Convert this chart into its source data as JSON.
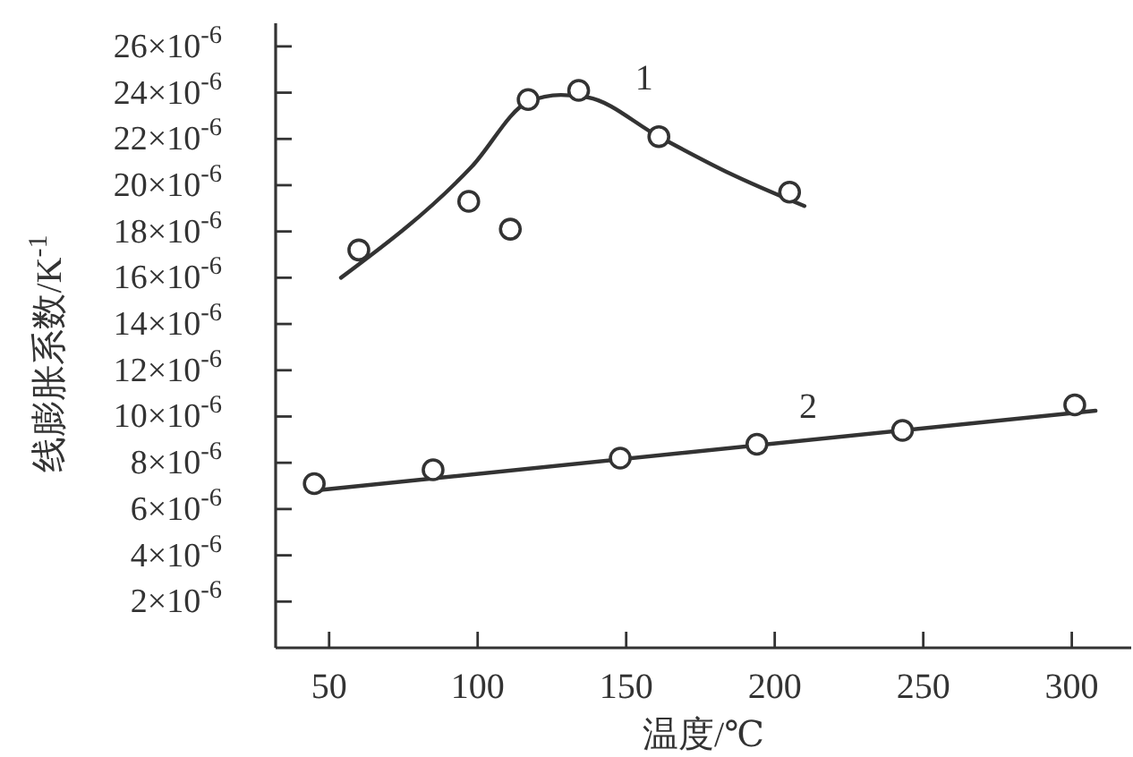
{
  "chart_data": {
    "type": "line",
    "xlabel": "温度/℃",
    "ylabel": "线膨胀系数/K$^{-1}$",
    "xlim": [
      32,
      320
    ],
    "xticks": [
      50,
      100,
      150,
      200,
      250,
      300
    ],
    "ylim": [
      0,
      2.7e-05
    ],
    "yticks": [
      {
        "value": 2e-06,
        "label": "2×10$^{-6}$"
      },
      {
        "value": 4e-06,
        "label": "4×10$^{-6}$"
      },
      {
        "value": 6e-06,
        "label": "6×10$^{-6}$"
      },
      {
        "value": 8e-06,
        "label": "8×10$^{-6}$"
      },
      {
        "value": 1e-05,
        "label": "10×10$^{-6}$"
      },
      {
        "value": 1.2e-05,
        "label": "12×10$^{-6}$"
      },
      {
        "value": 1.4e-05,
        "label": "14×10$^{-6}$"
      },
      {
        "value": 1.6e-05,
        "label": "16×10$^{-6}$"
      },
      {
        "value": 1.8e-05,
        "label": "18×10$^{-6}$"
      },
      {
        "value": 2e-05,
        "label": "20×10$^{-6}$"
      },
      {
        "value": 2.2e-05,
        "label": "22×10$^{-6}$"
      },
      {
        "value": 2.4e-05,
        "label": "24×10$^{-6}$"
      },
      {
        "value": 2.6e-05,
        "label": "26×10$^{-6}$"
      }
    ],
    "grid": false,
    "series": [
      {
        "name": "1",
        "color": "#333333",
        "marker": "none",
        "x": [
          54,
          98,
          117,
          128,
          137,
          161,
          185,
          210
        ],
        "values": [
          1.6e-05,
          2.08e-05,
          2.36e-05,
          2.39e-05,
          2.38e-05,
          2.21e-05,
          2.05e-05,
          1.91e-05
        ]
      },
      {
        "type": "scatter",
        "color": "#333333",
        "marker": "circle",
        "x": [
          60,
          97,
          111,
          117,
          134,
          161,
          205
        ],
        "values": [
          1.72e-05,
          1.93e-05,
          1.81e-05,
          2.37e-05,
          2.41e-05,
          2.21e-05,
          1.97e-05
        ]
      },
      {
        "name": "2",
        "color": "#333333",
        "marker": "none",
        "x": [
          45,
          308
        ],
        "values": [
          6.8e-06,
          1.025e-05
        ]
      },
      {
        "type": "scatter",
        "color": "#333333",
        "marker": "circle",
        "x": [
          45,
          85,
          148,
          194,
          243,
          301
        ],
        "values": [
          7.1e-06,
          7.7e-06,
          8.2e-06,
          8.8e-06,
          9.4e-06,
          1.05e-05
        ]
      }
    ]
  }
}
